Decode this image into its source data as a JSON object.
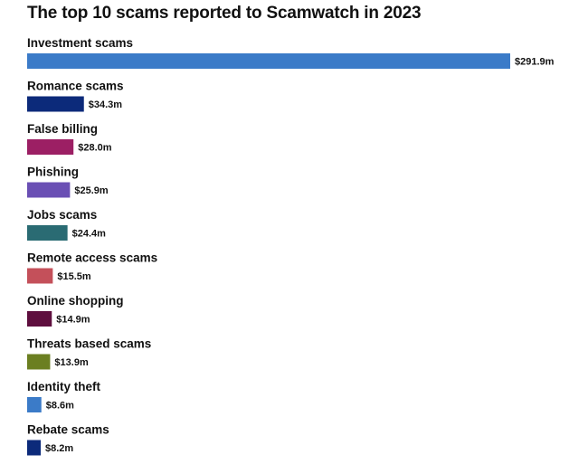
{
  "chart_data": {
    "type": "bar",
    "orientation": "horizontal",
    "title": "The top 10 scams reported to Scamwatch in 2023",
    "xlabel": "",
    "ylabel": "",
    "grid": false,
    "legend": "none",
    "xlim": [
      0,
      291.9
    ],
    "categories": [
      "Investment scams",
      "Romance scams",
      "False billing",
      "Phishing",
      "Jobs scams",
      "Remote access scams",
      "Online shopping",
      "Threats based scams",
      "Identity theft",
      "Rebate scams"
    ],
    "values": [
      291.9,
      34.3,
      28.0,
      25.9,
      24.4,
      15.5,
      14.9,
      13.9,
      8.6,
      8.2
    ],
    "value_labels": [
      "$291.9m",
      "$34.3m",
      "$28.0m",
      "$25.9m",
      "$24.4m",
      "$15.5m",
      "$14.9m",
      "$13.9m",
      "$8.6m",
      "$8.2m"
    ],
    "colors": [
      "#3b7bc8",
      "#0c2a7a",
      "#9c1f64",
      "#6a4fb4",
      "#2a6b73",
      "#c4505a",
      "#5e0e3e",
      "#6b7f21",
      "#3b7bc8",
      "#0c2a7a"
    ]
  }
}
